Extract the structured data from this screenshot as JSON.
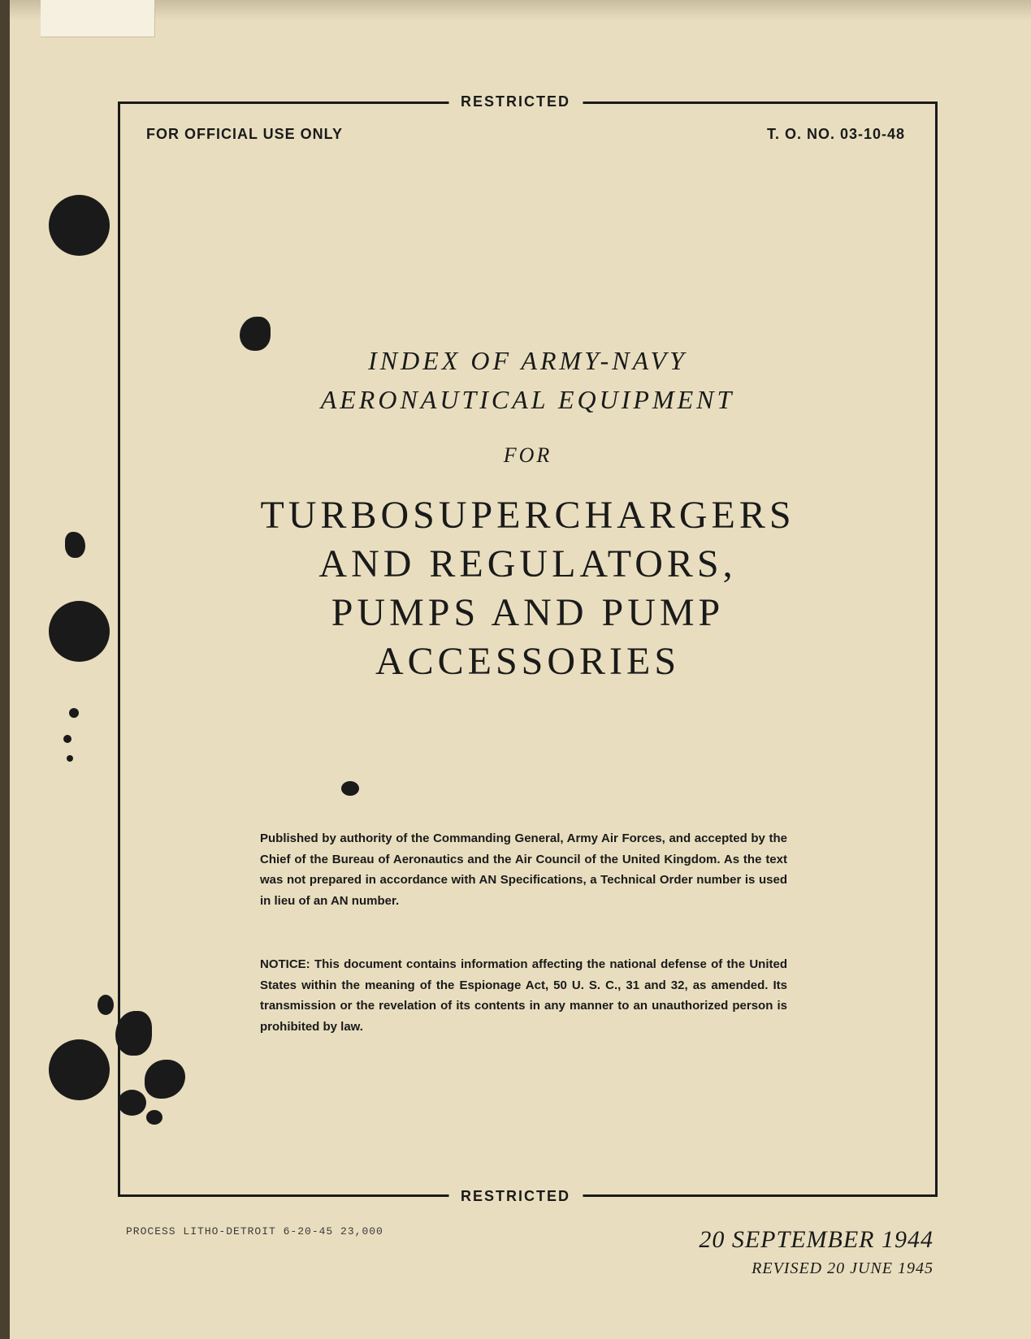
{
  "classification": {
    "top": "RESTRICTED",
    "bottom": "RESTRICTED"
  },
  "header": {
    "left": "FOR OFFICIAL USE ONLY",
    "right": "T. O. NO. 03-10-48"
  },
  "subtitle": {
    "line1": "INDEX OF ARMY-NAVY",
    "line2": "AERONAUTICAL EQUIPMENT",
    "for": "FOR"
  },
  "title": {
    "line1": "TURBOSUPERCHARGERS",
    "line2": "AND REGULATORS,",
    "line3": "PUMPS AND PUMP",
    "line4": "ACCESSORIES"
  },
  "publication": "Published by authority of the Commanding General, Army Air Forces, and accepted by the Chief of the Bureau of Aeronautics and the Air Council of the United Kingdom. As the text was not prepared in accordance with AN Specifications, a Technical Order number is used in lieu of an AN number.",
  "notice": "NOTICE: This document contains information affecting the national defense of the United States within the meaning of the Espionage Act, 50 U. S. C., 31 and 32, as amended. Its transmission or the revelation of its contents in any manner to an unauthorized person is prohibited by law.",
  "footer": {
    "print_info": "PROCESS LITHO-DETROIT  6-20-45  23,000",
    "date": "20 SEPTEMBER 1944",
    "revised": "REVISED 20 JUNE 1945"
  },
  "colors": {
    "page_bg": "#e8debf",
    "text": "#1a1a1a",
    "border": "#1a1a1a",
    "hole": "#1a1a1a"
  }
}
